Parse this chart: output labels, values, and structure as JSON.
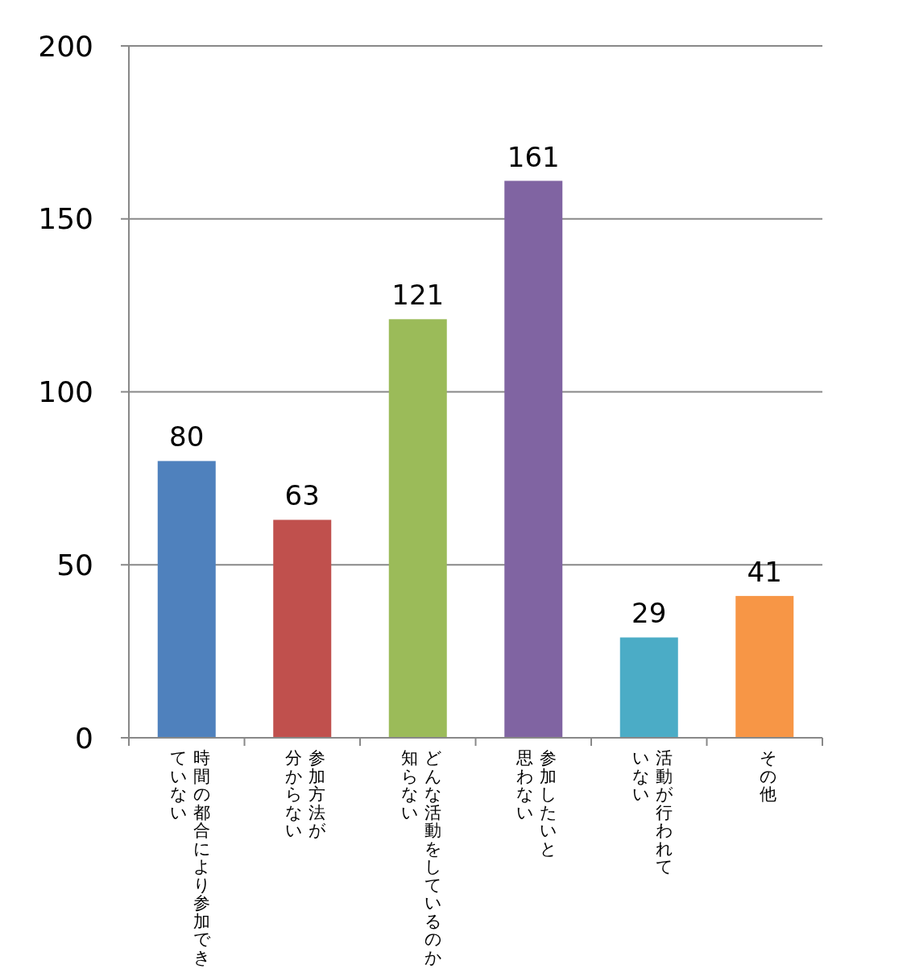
{
  "chart_data": {
    "type": "bar",
    "categories": [
      "時間の都合により参加できていない",
      "参加方法が分からない",
      "どんな活動をしているのか知らない",
      "参加したいと思わない",
      "活動が行われていない",
      "その他"
    ],
    "values": [
      80,
      63,
      121,
      161,
      29,
      41
    ],
    "colors": [
      "#4f81bd",
      "#c0504d",
      "#9bbb59",
      "#8064a2",
      "#4bacc6",
      "#f79646"
    ],
    "ylim": [
      0,
      200
    ],
    "yticks": [
      0,
      50,
      100,
      150,
      200
    ],
    "grid": "y",
    "data_labels": true
  }
}
